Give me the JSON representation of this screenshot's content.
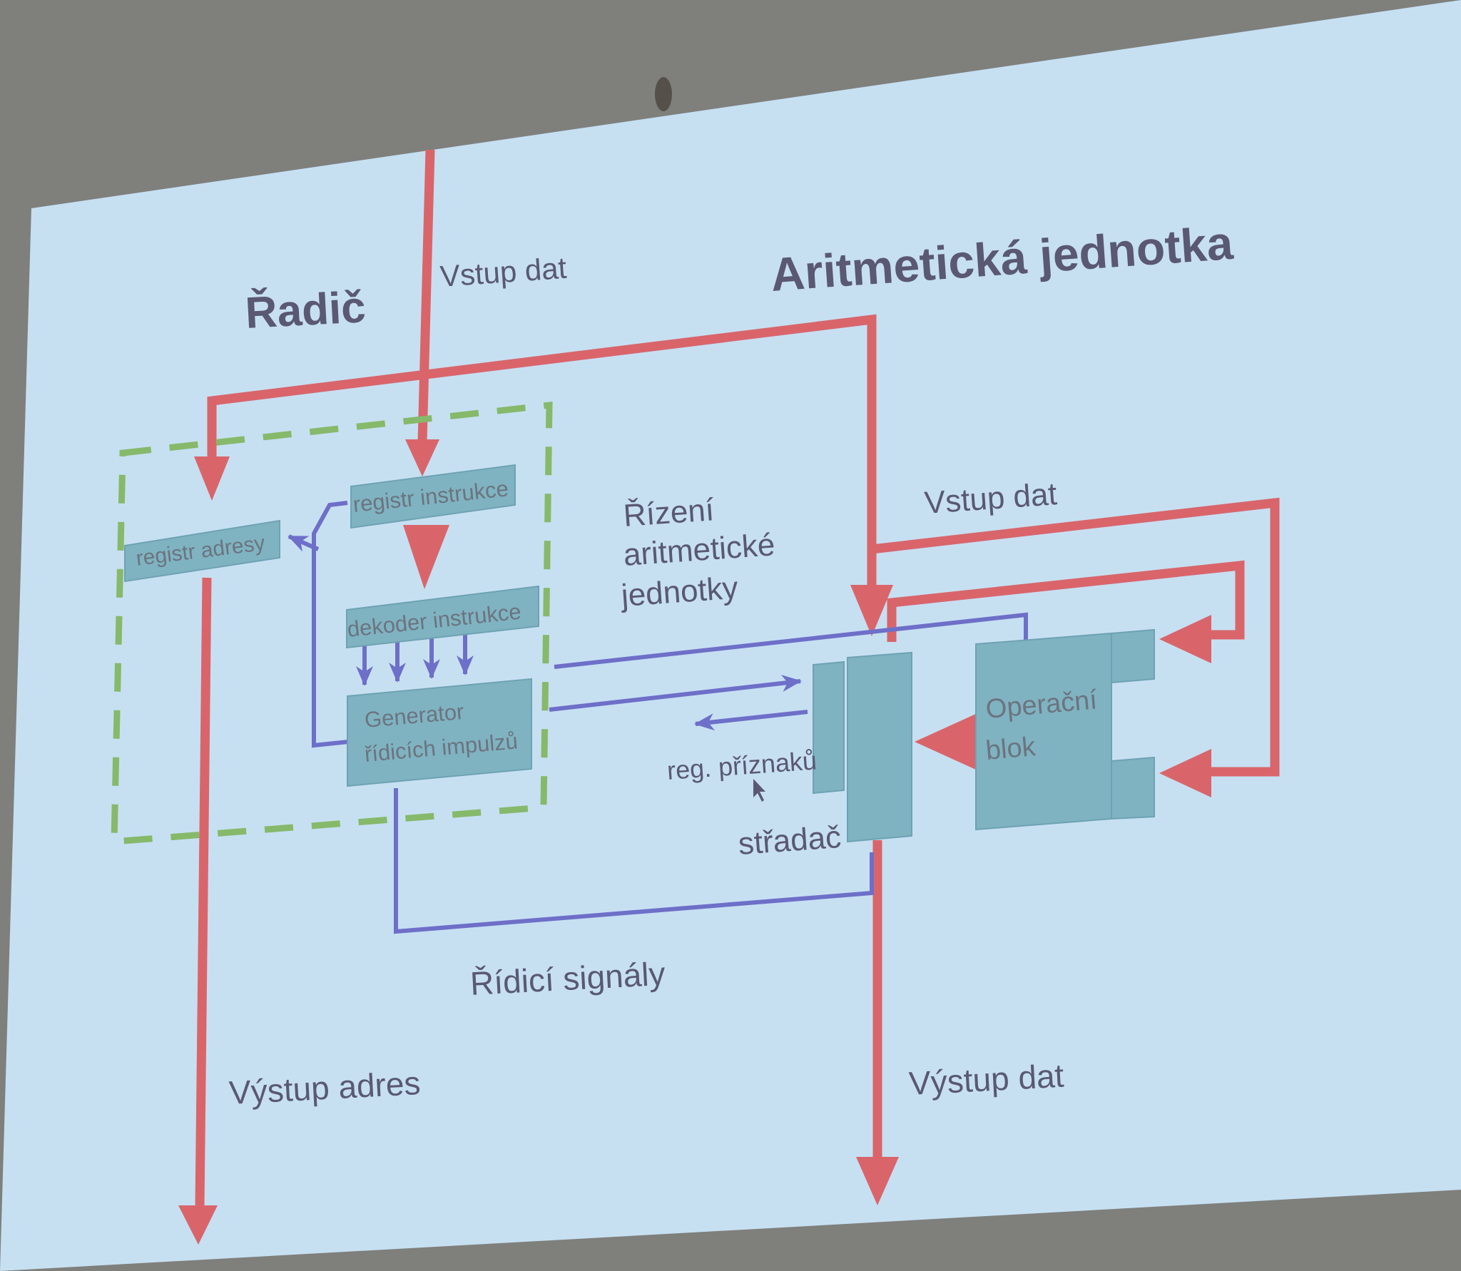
{
  "diagram": {
    "title_left": "Řadič",
    "title_right": "Aritmetická jednotka",
    "labels": {
      "vstup_dat_top": "Vstup dat",
      "vstup_dat_right": "Vstup dat",
      "rizeni_line1": "Řízení",
      "rizeni_line2": "aritmetické",
      "rizeni_line3": "jednotky",
      "reg_priznaku": "reg. příznaků",
      "stradac": "střadač",
      "ridici_signaly": "Řídicí signály",
      "vystup_adres": "Výstup adres",
      "vystup_dat": "Výstup dat"
    },
    "boxes": {
      "registr_adresy": "registr adresy",
      "registr_instrukce": "registr instrukce",
      "dekoder_instrukce": "dekoder instrukce",
      "generator_line1": "Generator",
      "generator_line2": "řídicích impulzů",
      "operacni_line1": "Operační",
      "operacni_line2": "blok"
    },
    "colors": {
      "screen": "#c6e0f2",
      "box": "#7fb3c1",
      "data_path": "#d9656b",
      "control_path": "#6e6fc8",
      "group_border": "#86b96a",
      "text": "#5a5872"
    }
  }
}
